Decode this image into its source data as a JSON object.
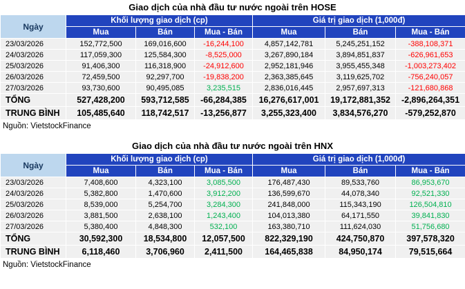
{
  "colors": {
    "header_bg": "#2144BE",
    "header_text": "#FFFFFF",
    "date_header_bg": "#BDD7EE",
    "date_header_text": "#17375E",
    "row_bg": "#F0F0F0",
    "negative": "#FF0000",
    "positive": "#00B050"
  },
  "chart_data": [
    {
      "type": "table",
      "title": "Giao dịch của nhà đầu tư nước ngoài trên HOSE",
      "headers": {
        "date": "Ngày",
        "volume_group": "Khối lượng giao dịch (cp)",
        "value_group": "Giá trị giao dịch (1,000đ)",
        "sub": [
          "Mua",
          "Bán",
          "Mua - Bán",
          "Mua",
          "Bán",
          "Mua - Bán"
        ]
      },
      "rows": [
        {
          "type": "data",
          "label": "23/03/2026",
          "values": [
            "152,772,500",
            "169,016,600",
            "-16,244,100",
            "4,857,142,781",
            "5,245,251,152",
            "-388,108,371"
          ]
        },
        {
          "type": "data",
          "label": "24/03/2026",
          "values": [
            "117,059,300",
            "125,584,300",
            "-8,525,000",
            "3,267,890,184",
            "3,894,851,837",
            "-626,961,653"
          ]
        },
        {
          "type": "data",
          "label": "25/03/2026",
          "values": [
            "91,406,300",
            "116,318,900",
            "-24,912,600",
            "2,952,181,946",
            "3,955,455,348",
            "-1,003,273,402"
          ]
        },
        {
          "type": "data",
          "label": "26/03/2026",
          "values": [
            "72,459,500",
            "92,297,700",
            "-19,838,200",
            "2,363,385,645",
            "3,119,625,702",
            "-756,240,057"
          ]
        },
        {
          "type": "data",
          "label": "27/03/2026",
          "values": [
            "93,730,600",
            "90,495,085",
            "3,235,515",
            "2,836,016,445",
            "2,957,697,313",
            "-121,680,868"
          ]
        },
        {
          "type": "total",
          "label": "TỔNG",
          "values": [
            "527,428,200",
            "593,712,585",
            "-66,284,385",
            "16,276,617,001",
            "19,172,881,352",
            "-2,896,264,351"
          ]
        },
        {
          "type": "total",
          "label": "TRUNG BÌNH",
          "values": [
            "105,485,640",
            "118,742,517",
            "-13,256,877",
            "3,255,323,400",
            "3,834,576,270",
            "-579,252,870"
          ]
        }
      ],
      "source": "Nguồn: VietstockFinance"
    },
    {
      "type": "table",
      "title": "Giao dịch của nhà đầu tư nước ngoài trên HNX",
      "headers": {
        "date": "Ngày",
        "volume_group": "Khối lượng giao dịch (cp)",
        "value_group": "Giá trị giao dịch (1,000đ)",
        "sub": [
          "Mua",
          "Bán",
          "Mua - Bán",
          "Mua",
          "Bán",
          "Mua - Bán"
        ]
      },
      "rows": [
        {
          "type": "data",
          "label": "23/03/2026",
          "values": [
            "7,408,600",
            "4,323,100",
            "3,085,500",
            "176,487,430",
            "89,533,760",
            "86,953,670"
          ]
        },
        {
          "type": "data",
          "label": "24/03/2026",
          "values": [
            "5,382,800",
            "1,470,600",
            "3,912,200",
            "136,599,670",
            "44,078,340",
            "92,521,330"
          ]
        },
        {
          "type": "data",
          "label": "25/03/2026",
          "values": [
            "8,539,000",
            "5,254,700",
            "3,284,300",
            "241,848,000",
            "115,343,190",
            "126,504,810"
          ]
        },
        {
          "type": "data",
          "label": "26/03/2026",
          "values": [
            "3,881,500",
            "2,638,100",
            "1,243,400",
            "104,013,380",
            "64,171,550",
            "39,841,830"
          ]
        },
        {
          "type": "data",
          "label": "27/03/2026",
          "values": [
            "5,380,400",
            "4,848,300",
            "532,100",
            "163,380,710",
            "111,624,030",
            "51,756,680"
          ]
        },
        {
          "type": "total",
          "label": "TỔNG",
          "values": [
            "30,592,300",
            "18,534,800",
            "12,057,500",
            "822,329,190",
            "424,750,870",
            "397,578,320"
          ]
        },
        {
          "type": "total",
          "label": "TRUNG BÌNH",
          "values": [
            "6,118,460",
            "3,706,960",
            "2,411,500",
            "164,465,838",
            "84,950,174",
            "79,515,664"
          ]
        }
      ],
      "source": "Nguồn: VietstockFinance"
    }
  ]
}
